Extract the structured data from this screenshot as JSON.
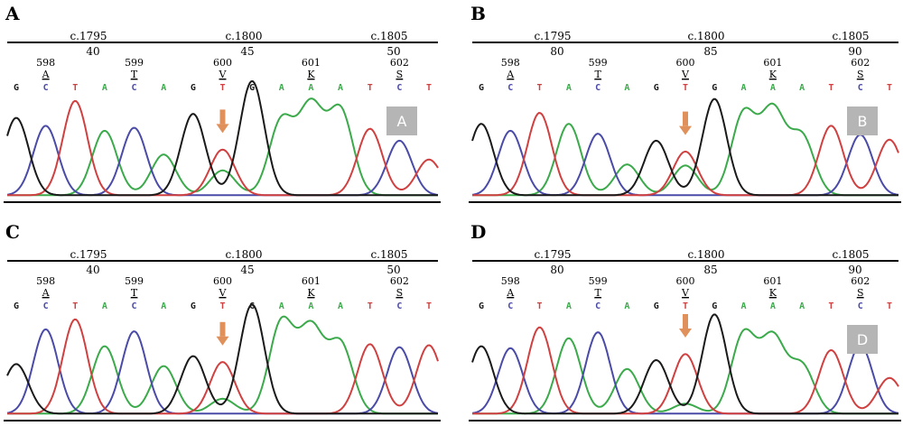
{
  "colors": {
    "G": "#1a1a1a",
    "A": "#3aaa4a",
    "T": "#d04040",
    "C": "#4a4aa8",
    "arrow": "#e0905a",
    "badge": "#b5b5b5"
  },
  "panels": [
    {
      "letter": "A",
      "badge": "A",
      "ruler_top": [
        "c.1795",
        "c.1800",
        "c.1805"
      ],
      "ruler_bottom": [
        "40",
        "45",
        "50"
      ],
      "codons": [
        {
          "num": "598",
          "aa": "A"
        },
        {
          "num": "599",
          "aa": "T"
        },
        {
          "num": "600",
          "aa": "V"
        },
        {
          "num": "601",
          "aa": "K"
        },
        {
          "num": "602",
          "aa": "S"
        }
      ],
      "bases": [
        "G",
        "C",
        "T",
        "A",
        "C",
        "A",
        "G",
        "T",
        "G",
        "A",
        "A",
        "A",
        "T",
        "C",
        "T"
      ],
      "peaks": [
        0.78,
        0.7,
        0.95,
        0.65,
        0.68,
        0.41,
        0.82,
        0.46,
        1.15,
        0.75,
        0.88,
        0.85,
        0.67,
        0.55,
        0.36
      ],
      "mut_peak": 0.25
    },
    {
      "letter": "B",
      "badge": "B",
      "ruler_top": [
        "c.1795",
        "c.1800",
        "c.1805"
      ],
      "ruler_bottom": [
        "80",
        "85",
        "90"
      ],
      "codons": [
        {
          "num": "598",
          "aa": "A"
        },
        {
          "num": "599",
          "aa": "T"
        },
        {
          "num": "600",
          "aa": "V"
        },
        {
          "num": "601",
          "aa": "K"
        },
        {
          "num": "602",
          "aa": "S"
        }
      ],
      "bases": [
        "G",
        "C",
        "T",
        "A",
        "C",
        "A",
        "G",
        "T",
        "G",
        "A",
        "A",
        "A",
        "T",
        "C",
        "T"
      ],
      "peaks": [
        0.72,
        0.65,
        0.83,
        0.72,
        0.62,
        0.31,
        0.55,
        0.44,
        0.97,
        0.82,
        0.84,
        0.59,
        0.7,
        0.61,
        0.56
      ],
      "mut_peak": 0.3
    },
    {
      "letter": "C",
      "badge": "",
      "ruler_top": [
        "c.1795",
        "c.1800",
        "c.1805"
      ],
      "ruler_bottom": [
        "40",
        "45",
        "50"
      ],
      "codons": [
        {
          "num": "598",
          "aa": "A"
        },
        {
          "num": "599",
          "aa": "T"
        },
        {
          "num": "600",
          "aa": "V"
        },
        {
          "num": "601",
          "aa": "K"
        },
        {
          "num": "602",
          "aa": "S"
        }
      ],
      "bases": [
        "G",
        "C",
        "T",
        "A",
        "C",
        "A",
        "G",
        "T",
        "G",
        "A",
        "A",
        "A",
        "T",
        "C",
        "T"
      ],
      "peaks": [
        0.5,
        0.85,
        0.95,
        0.68,
        0.83,
        0.48,
        0.58,
        0.52,
        1.1,
        0.92,
        0.84,
        0.7,
        0.7,
        0.67,
        0.69
      ],
      "mut_peak": 0.15
    },
    {
      "letter": "D",
      "badge": "D",
      "ruler_top": [
        "c.1795",
        "c.1800",
        "c.1805"
      ],
      "ruler_bottom": [
        "80",
        "85",
        "90"
      ],
      "codons": [
        {
          "num": "598",
          "aa": "A"
        },
        {
          "num": "599",
          "aa": "T"
        },
        {
          "num": "600",
          "aa": "V"
        },
        {
          "num": "601",
          "aa": "K"
        },
        {
          "num": "602",
          "aa": "S"
        }
      ],
      "bases": [
        "G",
        "C",
        "T",
        "A",
        "C",
        "A",
        "G",
        "T",
        "G",
        "A",
        "A",
        "A",
        "T",
        "C",
        "T"
      ],
      "peaks": [
        0.68,
        0.66,
        0.87,
        0.76,
        0.82,
        0.45,
        0.54,
        0.6,
        1.0,
        0.8,
        0.75,
        0.48,
        0.64,
        0.69,
        0.36
      ],
      "mut_peak": 0.1
    }
  ]
}
